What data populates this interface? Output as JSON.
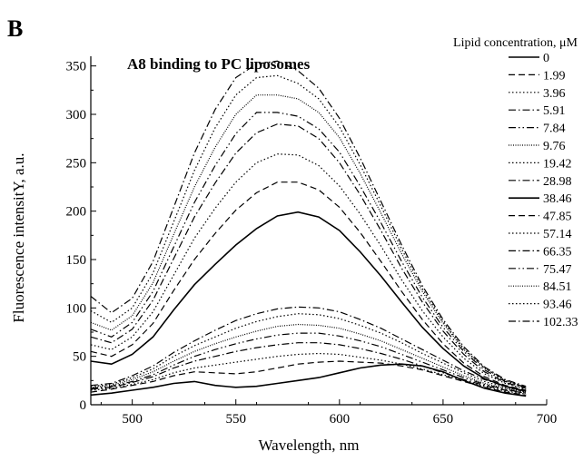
{
  "panel_label": "B",
  "chart_data": {
    "type": "line",
    "title": "A8 binding to PC liposomes",
    "xlabel": "Wavelength, nm",
    "ylabel": "Fluorescence intensitY, a.u.",
    "xlim": [
      480,
      700
    ],
    "ylim": [
      0,
      360
    ],
    "xticks": [
      500,
      550,
      600,
      650,
      700
    ],
    "yticks": [
      0,
      50,
      100,
      150,
      200,
      250,
      300,
      350
    ],
    "legend_title": "Lipid concentration, μM",
    "legend_position": "right",
    "grid": false,
    "series": [
      {
        "name": "0",
        "dash": "solid",
        "x": [
          480,
          490,
          500,
          510,
          520,
          530,
          540,
          550,
          560,
          570,
          580,
          590,
          600,
          610,
          620,
          630,
          640,
          650,
          660,
          670,
          680,
          690
        ],
        "y": [
          10,
          12,
          15,
          18,
          22,
          24,
          20,
          18,
          19,
          22,
          25,
          28,
          33,
          38,
          41,
          42,
          40,
          34,
          25,
          17,
          12,
          9
        ]
      },
      {
        "name": "1.99",
        "dash": "dashed",
        "x": [
          480,
          490,
          500,
          510,
          520,
          530,
          540,
          550,
          560,
          570,
          580,
          590,
          600,
          610,
          620,
          630,
          640,
          650,
          660,
          670,
          680,
          690
        ],
        "y": [
          13,
          16,
          20,
          24,
          30,
          34,
          33,
          32,
          34,
          38,
          42,
          44,
          45,
          44,
          43,
          40,
          36,
          30,
          24,
          18,
          13,
          10
        ]
      },
      {
        "name": "3.96",
        "dash": "dotted",
        "x": [
          480,
          490,
          500,
          510,
          520,
          530,
          540,
          550,
          560,
          570,
          580,
          590,
          600,
          610,
          620,
          630,
          640,
          650,
          660,
          670,
          680,
          690
        ],
        "y": [
          15,
          17,
          21,
          26,
          33,
          38,
          41,
          44,
          47,
          50,
          52,
          53,
          52,
          49,
          46,
          42,
          37,
          31,
          25,
          19,
          14,
          11
        ]
      },
      {
        "name": "5.91",
        "dash": "dashdot",
        "x": [
          480,
          490,
          500,
          510,
          520,
          530,
          540,
          550,
          560,
          570,
          580,
          590,
          600,
          610,
          620,
          630,
          640,
          650,
          660,
          670,
          680,
          690
        ],
        "y": [
          16,
          18,
          23,
          29,
          38,
          45,
          50,
          55,
          59,
          62,
          64,
          64,
          62,
          58,
          53,
          47,
          40,
          33,
          26,
          20,
          15,
          12
        ]
      },
      {
        "name": "7.84",
        "dash": "dashdotdot",
        "x": [
          480,
          490,
          500,
          510,
          520,
          530,
          540,
          550,
          560,
          570,
          580,
          590,
          600,
          610,
          620,
          630,
          640,
          650,
          660,
          670,
          680,
          690
        ],
        "y": [
          17,
          19,
          24,
          31,
          41,
          50,
          57,
          63,
          68,
          72,
          74,
          74,
          71,
          66,
          60,
          52,
          44,
          36,
          28,
          21,
          16,
          12
        ]
      },
      {
        "name": "9.76",
        "dash": "shortdot",
        "x": [
          480,
          490,
          500,
          510,
          520,
          530,
          540,
          550,
          560,
          570,
          580,
          590,
          600,
          610,
          620,
          630,
          640,
          650,
          660,
          670,
          680,
          690
        ],
        "y": [
          18,
          20,
          26,
          34,
          45,
          55,
          63,
          70,
          76,
          81,
          83,
          82,
          79,
          73,
          66,
          57,
          48,
          39,
          30,
          22,
          17,
          13
        ]
      },
      {
        "name": "19.42",
        "dash": "dotted",
        "x": [
          480,
          490,
          500,
          510,
          520,
          530,
          540,
          550,
          560,
          570,
          580,
          590,
          600,
          610,
          620,
          630,
          640,
          650,
          660,
          670,
          680,
          690
        ],
        "y": [
          19,
          21,
          28,
          37,
          50,
          61,
          70,
          79,
          86,
          91,
          94,
          93,
          89,
          82,
          74,
          64,
          53,
          43,
          33,
          24,
          18,
          13
        ]
      },
      {
        "name": "28.98",
        "dash": "dashdot",
        "x": [
          480,
          490,
          500,
          510,
          520,
          530,
          540,
          550,
          560,
          570,
          580,
          590,
          600,
          610,
          620,
          630,
          640,
          650,
          660,
          670,
          680,
          690
        ],
        "y": [
          20,
          22,
          30,
          40,
          54,
          66,
          77,
          87,
          94,
          99,
          101,
          100,
          96,
          88,
          79,
          68,
          57,
          46,
          35,
          26,
          19,
          14
        ]
      },
      {
        "name": "38.46",
        "dash": "solid",
        "x": [
          480,
          490,
          500,
          510,
          520,
          530,
          540,
          550,
          560,
          570,
          580,
          590,
          600,
          610,
          620,
          630,
          640,
          650,
          660,
          670,
          680,
          690
        ],
        "y": [
          45,
          42,
          52,
          70,
          98,
          124,
          145,
          165,
          182,
          195,
          199,
          194,
          180,
          158,
          133,
          106,
          80,
          58,
          40,
          27,
          19,
          14
        ]
      },
      {
        "name": "47.85",
        "dash": "dashed",
        "x": [
          480,
          490,
          500,
          510,
          520,
          530,
          540,
          550,
          560,
          570,
          580,
          590,
          600,
          610,
          620,
          630,
          640,
          650,
          660,
          670,
          680,
          690
        ],
        "y": [
          55,
          50,
          62,
          84,
          118,
          150,
          177,
          201,
          219,
          230,
          230,
          222,
          204,
          178,
          148,
          117,
          88,
          63,
          43,
          29,
          20,
          15
        ]
      },
      {
        "name": "57.14",
        "dash": "dotted",
        "x": [
          480,
          490,
          500,
          510,
          520,
          530,
          540,
          550,
          560,
          570,
          580,
          590,
          600,
          610,
          620,
          630,
          640,
          650,
          660,
          670,
          680,
          690
        ],
        "y": [
          62,
          57,
          70,
          96,
          134,
          172,
          203,
          230,
          250,
          259,
          258,
          247,
          226,
          197,
          164,
          129,
          97,
          70,
          48,
          32,
          22,
          16
        ]
      },
      {
        "name": "66.35",
        "dash": "dashdot",
        "x": [
          480,
          490,
          500,
          510,
          520,
          530,
          540,
          550,
          560,
          570,
          580,
          590,
          600,
          610,
          620,
          630,
          640,
          650,
          660,
          670,
          680,
          690
        ],
        "y": [
          70,
          64,
          78,
          108,
          151,
          194,
          229,
          260,
          281,
          290,
          288,
          275,
          250,
          217,
          180,
          141,
          106,
          76,
          52,
          34,
          23,
          17
        ]
      },
      {
        "name": "75.47",
        "dash": "dashdotdot",
        "x": [
          480,
          490,
          500,
          510,
          520,
          530,
          540,
          550,
          560,
          570,
          580,
          590,
          600,
          610,
          620,
          630,
          640,
          650,
          660,
          670,
          680,
          690
        ],
        "y": [
          78,
          70,
          85,
          117,
          163,
          209,
          247,
          280,
          302,
          302,
          298,
          285,
          261,
          226,
          188,
          148,
          111,
          80,
          55,
          36,
          24,
          18
        ]
      },
      {
        "name": "84.51",
        "dash": "shortdot",
        "x": [
          480,
          490,
          500,
          510,
          520,
          530,
          540,
          550,
          560,
          570,
          580,
          590,
          600,
          610,
          620,
          630,
          640,
          650,
          660,
          670,
          680,
          690
        ],
        "y": [
          85,
          77,
          92,
          126,
          176,
          225,
          266,
          300,
          320,
          320,
          316,
          302,
          276,
          239,
          198,
          156,
          117,
          84,
          57,
          38,
          25,
          18
        ]
      },
      {
        "name": "93.46",
        "dash": "dotted",
        "x": [
          480,
          490,
          500,
          510,
          520,
          530,
          540,
          550,
          560,
          570,
          580,
          590,
          600,
          610,
          620,
          630,
          640,
          650,
          660,
          670,
          680,
          690
        ],
        "y": [
          97,
          85,
          100,
          136,
          189,
          242,
          286,
          320,
          338,
          340,
          332,
          316,
          287,
          248,
          205,
          161,
          120,
          86,
          58,
          38,
          25,
          18
        ]
      },
      {
        "name": "102.33",
        "dash": "dashdot",
        "x": [
          480,
          490,
          500,
          510,
          520,
          530,
          540,
          550,
          560,
          570,
          580,
          590,
          600,
          610,
          620,
          630,
          640,
          650,
          660,
          670,
          680,
          690
        ],
        "y": [
          112,
          95,
          110,
          148,
          204,
          260,
          305,
          338,
          352,
          355,
          345,
          327,
          296,
          255,
          210,
          165,
          123,
          88,
          60,
          39,
          26,
          19
        ]
      }
    ]
  }
}
